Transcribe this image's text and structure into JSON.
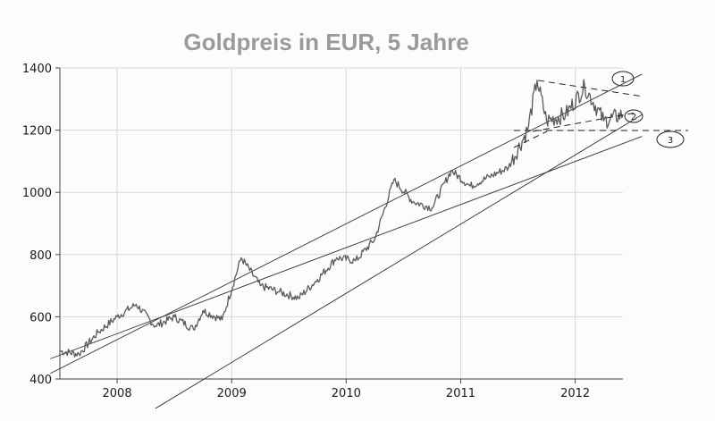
{
  "chart_data": {
    "type": "line",
    "title": "Goldpreis in EUR, 5 Jahre",
    "xlabel": "",
    "ylabel": "",
    "ylim": [
      400,
      1400
    ],
    "xlim": [
      "2007-07",
      "2012-06"
    ],
    "y_ticks": [
      400,
      600,
      800,
      1000,
      1200,
      1400
    ],
    "y_tick_labels": [
      "400",
      "600",
      "800",
      "1000",
      "1200",
      "1400"
    ],
    "x_ticks": [
      "2008",
      "2009",
      "2010",
      "2011",
      "2012"
    ],
    "grid": true,
    "series": [
      {
        "x": [
          "2007-07",
          "2007-09",
          "2007-11",
          "2008-01",
          "2008-03",
          "2008-05",
          "2008-07",
          "2008-09",
          "2008-10",
          "2008-12",
          "2009-02",
          "2009-04",
          "2009-06",
          "2009-08",
          "2009-10",
          "2009-12",
          "2010-02",
          "2010-04",
          "2010-06",
          "2010-08",
          "2010-10",
          "2010-12",
          "2011-02",
          "2011-04",
          "2011-06",
          "2011-08",
          "2011-09",
          "2011-10",
          "2011-12",
          "2012-02",
          "2012-04",
          "2012-06"
        ],
        "values": [
          490,
          480,
          550,
          600,
          640,
          570,
          600,
          560,
          620,
          590,
          790,
          700,
          680,
          660,
          720,
          790,
          780,
          850,
          1040,
          970,
          950,
          1070,
          1020,
          1050,
          1080,
          1200,
          1360,
          1230,
          1250,
          1340,
          1230,
          1250
        ]
      }
    ],
    "trend_lines": [
      {
        "from": [
          "2007-06",
          465
        ],
        "to": [
          "2012-08",
          1180
        ]
      },
      {
        "from": [
          "2007-06",
          418
        ],
        "to": [
          "2012-08",
          1380
        ]
      },
      {
        "from": [
          "2008-05",
          305
        ],
        "to": [
          "2012-08",
          1250
        ]
      }
    ],
    "annotations": [
      {
        "label": "1",
        "at": [
          "2012-07",
          1310
        ]
      },
      {
        "label": "2",
        "at": [
          "2012-06",
          1245
        ]
      },
      {
        "label": "3",
        "at": [
          "2012-08",
          1180
        ]
      }
    ]
  }
}
